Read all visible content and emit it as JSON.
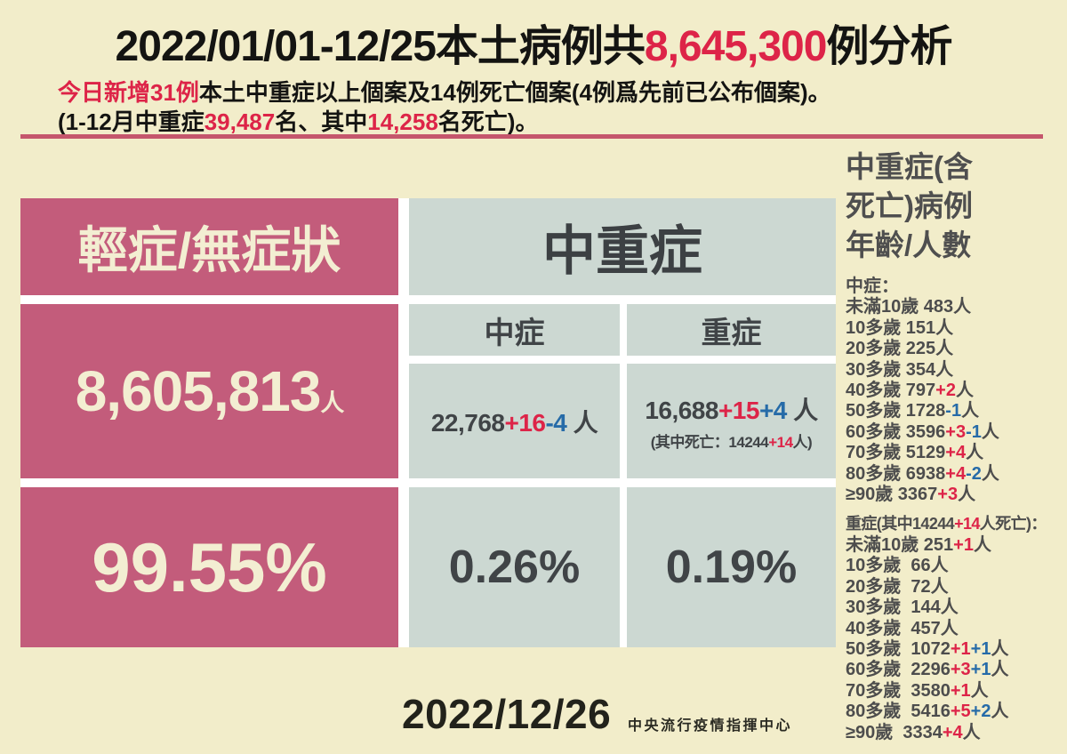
{
  "palette": {
    "background": "#f2edca",
    "pink": "#c35c7b",
    "gray_green": "#ccd8d2",
    "accent_red": "#dd2448",
    "accent_blue": "#266ba8",
    "divider": "#c5566c",
    "text_dark": "#404447",
    "text_cream": "#f3eed2"
  },
  "header": {
    "title": [
      {
        "t": "2022/01/01-12/25本土病例共"
      },
      {
        "t": "8,645,300",
        "c": "r"
      },
      {
        "t": "例分析"
      }
    ],
    "subtitle1": [
      {
        "t": "今日新增31例",
        "c": "r"
      },
      {
        "t": "本土中重症以上個案及14例死亡個案(4例爲先前已公布個案)。"
      }
    ],
    "subtitle2": [
      {
        "t": "(1-12月中重症"
      },
      {
        "t": "39,487",
        "c": "r"
      },
      {
        "t": "名、其中"
      },
      {
        "t": "14,258",
        "c": "r"
      },
      {
        "t": "名死亡)。"
      }
    ]
  },
  "grid": {
    "mild": {
      "title": "輕症/無症狀",
      "count": [
        {
          "t": "8,605,813"
        },
        {
          "t": "人",
          "c": "unit"
        }
      ],
      "percent": "99.55%"
    },
    "group_title": "中重症",
    "moderate": {
      "label": "中症",
      "count": [
        {
          "t": "22,768"
        },
        {
          "t": "+16",
          "c": "r"
        },
        {
          "t": "-4",
          "c": "b"
        },
        {
          "t": " 人"
        }
      ],
      "percent": "0.26%"
    },
    "severe": {
      "label": "重症",
      "count": [
        {
          "t": "16,688"
        },
        {
          "t": "+15",
          "c": "r"
        },
        {
          "t": "+4",
          "c": "b"
        },
        {
          "t": " 人"
        }
      ],
      "death_note": [
        {
          "t": "(其中死亡：14244"
        },
        {
          "t": "+14",
          "c": "r"
        },
        {
          "t": "人)"
        }
      ],
      "percent": "0.19%"
    }
  },
  "age_panel": {
    "title": "中重症(含\n死亡)病例\n年齡/人數",
    "moderate": {
      "header": [
        {
          "t": "中症："
        }
      ],
      "rows": [
        [
          {
            "t": "未滿10歲 483人"
          }
        ],
        [
          {
            "t": "10多歲 151人"
          }
        ],
        [
          {
            "t": "20多歲 225人"
          }
        ],
        [
          {
            "t": "30多歲 354人"
          }
        ],
        [
          {
            "t": "40多歲 797"
          },
          {
            "t": "+2",
            "c": "r"
          },
          {
            "t": "人"
          }
        ],
        [
          {
            "t": "50多歲 1728"
          },
          {
            "t": "-1",
            "c": "b"
          },
          {
            "t": "人"
          }
        ],
        [
          {
            "t": "60多歲 3596"
          },
          {
            "t": "+3",
            "c": "r"
          },
          {
            "t": "-1",
            "c": "b"
          },
          {
            "t": "人"
          }
        ],
        [
          {
            "t": "70多歲 5129"
          },
          {
            "t": "+4",
            "c": "r"
          },
          {
            "t": "人"
          }
        ],
        [
          {
            "t": "80多歲 6938"
          },
          {
            "t": "+4",
            "c": "r"
          },
          {
            "t": "-2",
            "c": "b"
          },
          {
            "t": "人"
          }
        ],
        [
          {
            "t": "≥90歲 3367"
          },
          {
            "t": "+3",
            "c": "r"
          },
          {
            "t": "人"
          }
        ]
      ]
    },
    "severe": {
      "header": [
        {
          "t": "重症(其中14244"
        },
        {
          "t": "+14",
          "c": "r"
        },
        {
          "t": "人死亡)："
        }
      ],
      "rows": [
        [
          {
            "t": "未滿10歲 251"
          },
          {
            "t": "+1",
            "c": "r"
          },
          {
            "t": "人"
          }
        ],
        [
          {
            "t": "10多歲  66人"
          }
        ],
        [
          {
            "t": "20多歲  72人"
          }
        ],
        [
          {
            "t": "30多歲  144人"
          }
        ],
        [
          {
            "t": "40多歲  457人"
          }
        ],
        [
          {
            "t": "50多歲  1072"
          },
          {
            "t": "+1",
            "c": "r"
          },
          {
            "t": "+1",
            "c": "b"
          },
          {
            "t": "人"
          }
        ],
        [
          {
            "t": "60多歲  2296"
          },
          {
            "t": "+3",
            "c": "r"
          },
          {
            "t": "+1",
            "c": "b"
          },
          {
            "t": "人"
          }
        ],
        [
          {
            "t": "70多歲  3580"
          },
          {
            "t": "+1",
            "c": "r"
          },
          {
            "t": "人"
          }
        ],
        [
          {
            "t": "80多歲  5416"
          },
          {
            "t": "+5",
            "c": "r"
          },
          {
            "t": "+2",
            "c": "b"
          },
          {
            "t": "人"
          }
        ],
        [
          {
            "t": "≥90歲  3334"
          },
          {
            "t": "+4",
            "c": "r"
          },
          {
            "t": "人"
          }
        ]
      ]
    }
  },
  "footer": {
    "date": "2022/12/26",
    "org": "中央流行疫情指揮中心"
  },
  "chart_data": {
    "type": "table",
    "title": "2022/01/01-12/25本土病例共8,645,300例分析",
    "date": "2022/12/26",
    "source": "中央流行疫情指揮中心",
    "summary": {
      "total_cases": 8645300,
      "today_new_moderate_severe": 31,
      "today_new_deaths": 14,
      "jan_dec_moderate_severe": 39487,
      "jan_dec_deaths": 14258,
      "mild_asymptomatic": {
        "count": 8605813,
        "percent": 99.55
      },
      "moderate": {
        "count": 22768,
        "delta_red": "+16",
        "delta_blue": "-4",
        "percent": 0.26
      },
      "severe": {
        "count": 16688,
        "delta_red": "+15",
        "delta_blue": "+4",
        "percent": 0.19,
        "deaths": 14244,
        "deaths_delta": "+14"
      }
    },
    "categories": [
      "未滿10歲",
      "10多歲",
      "20多歲",
      "30多歲",
      "40多歲",
      "50多歲",
      "60多歲",
      "70多歲",
      "80多歲",
      "≥90歲"
    ],
    "series": [
      {
        "name": "中症",
        "values": [
          483,
          151,
          225,
          354,
          797,
          1728,
          3596,
          5129,
          6938,
          3367
        ],
        "delta_red": [
          null,
          null,
          null,
          null,
          "+2",
          null,
          "+3",
          "+4",
          "+4",
          "+3"
        ],
        "delta_blue": [
          null,
          null,
          null,
          null,
          null,
          "-1",
          "-1",
          null,
          "-2",
          null
        ]
      },
      {
        "name": "重症",
        "values": [
          251,
          66,
          72,
          144,
          457,
          1072,
          2296,
          3580,
          5416,
          3334
        ],
        "delta_red": [
          "+1",
          null,
          null,
          null,
          null,
          "+1",
          "+3",
          "+1",
          "+5",
          "+4"
        ],
        "delta_blue": [
          null,
          null,
          null,
          null,
          null,
          "+1",
          "+1",
          null,
          "+2",
          null
        ]
      }
    ]
  }
}
